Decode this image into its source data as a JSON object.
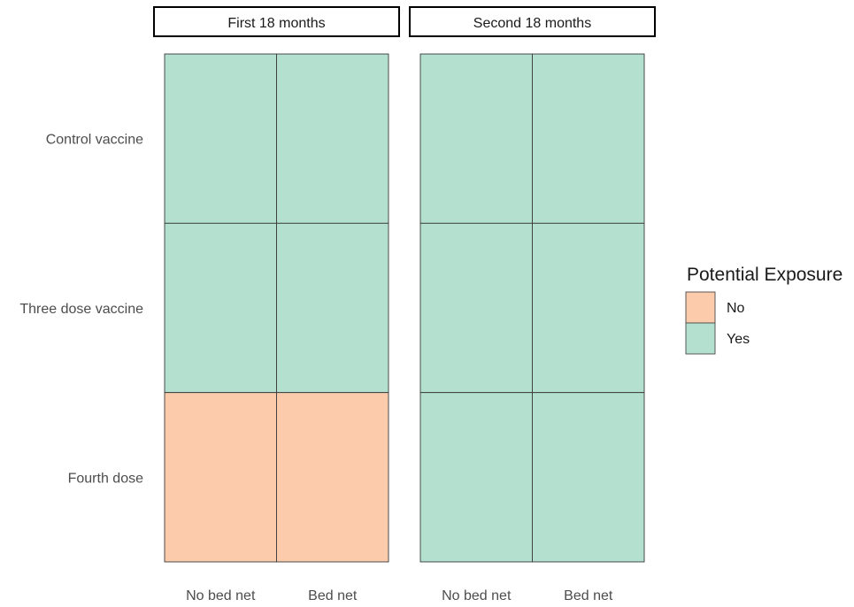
{
  "chart_data": {
    "type": "heatmap",
    "facets": [
      "First 18 months",
      "Second 18 months"
    ],
    "rows": [
      "Control vaccine",
      "Three dose vaccine",
      "Fourth dose"
    ],
    "columns": [
      "No bed net",
      "Bed net"
    ],
    "values": [
      [
        [
          "Yes",
          "Yes"
        ],
        [
          "Yes",
          "Yes"
        ],
        [
          "No",
          "No"
        ]
      ],
      [
        [
          "Yes",
          "Yes"
        ],
        [
          "Yes",
          "Yes"
        ],
        [
          "Yes",
          "Yes"
        ]
      ]
    ],
    "legend": {
      "title": "Potential Exposure",
      "placement": "right",
      "entries": [
        {
          "label": "No",
          "color": "#fbcbab"
        },
        {
          "label": "Yes",
          "color": "#b3e0cf"
        }
      ]
    },
    "grid": false
  }
}
